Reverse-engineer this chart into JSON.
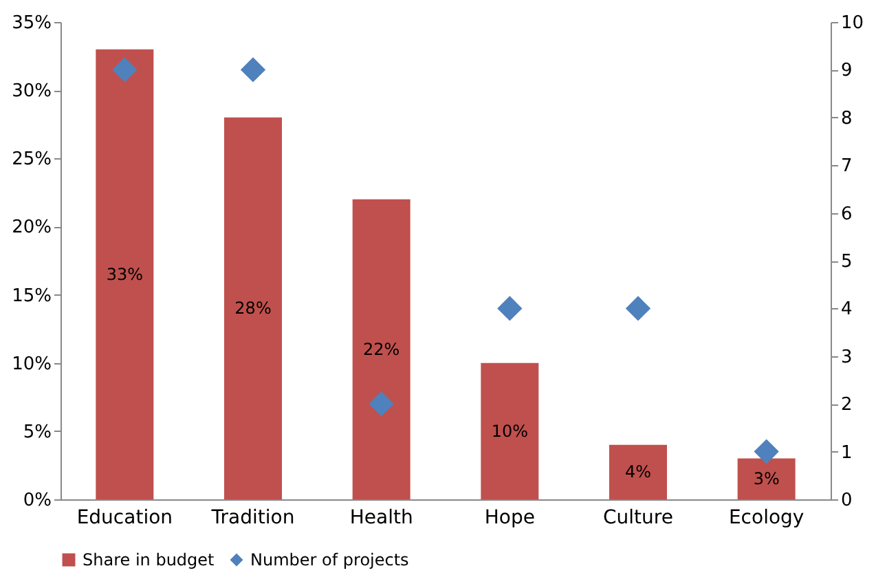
{
  "chart_data": {
    "type": "bar",
    "categories": [
      "Education",
      "Tradition",
      "Health",
      "Hope",
      "Culture",
      "Ecology"
    ],
    "series": [
      {
        "name": "Share in budget",
        "color": "#c0504d",
        "values": [
          33,
          28,
          22,
          10,
          4,
          3
        ],
        "value_labels": [
          "33%",
          "28%",
          "22%",
          "10%",
          "4%",
          "3%"
        ]
      },
      {
        "name": "Number of projects",
        "type": "scatter",
        "axis": "y2",
        "marker": "diamond",
        "color": "#4f81bd",
        "values": [
          9,
          9,
          2,
          4,
          4,
          1
        ]
      }
    ],
    "ylim": [
      0,
      35
    ],
    "yticks": [
      {
        "value": 0,
        "label": "0%"
      },
      {
        "value": 5,
        "label": "5%"
      },
      {
        "value": 10,
        "label": "10%"
      },
      {
        "value": 15,
        "label": "15%"
      },
      {
        "value": 20,
        "label": "20%"
      },
      {
        "value": 25,
        "label": "25%"
      },
      {
        "value": 30,
        "label": "30%"
      },
      {
        "value": 35,
        "label": "35%"
      }
    ],
    "y2lim": [
      0,
      10
    ],
    "y2ticks": [
      0,
      1,
      2,
      3,
      4,
      5,
      6,
      7,
      8,
      9,
      10
    ],
    "legend": "bottom",
    "grid": false
  }
}
